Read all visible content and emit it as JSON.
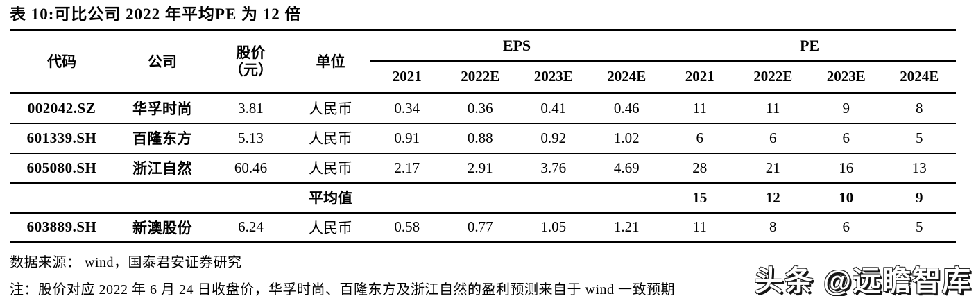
{
  "title": "表 10:可比公司 2022 年平均PE 为 12 倍",
  "table": {
    "headers": {
      "code": "代码",
      "company": "公司",
      "price_line1": "股价",
      "price_line2": "（元）",
      "unit": "单位"
    },
    "groups": {
      "eps": "EPS",
      "pe": "PE"
    },
    "eps_years": [
      "2021",
      "2022E",
      "2023E",
      "2024E"
    ],
    "pe_years": [
      "2021",
      "2022E",
      "2023E",
      "2024E"
    ],
    "rows": [
      {
        "code": "002042.SZ",
        "company": "华孚时尚",
        "price": "3.81",
        "unit": "人民币",
        "eps": [
          "0.34",
          "0.36",
          "0.41",
          "0.46"
        ],
        "pe": [
          "11",
          "11",
          "9",
          "8"
        ],
        "is_average": false
      },
      {
        "code": "601339.SH",
        "company": "百隆东方",
        "price": "5.13",
        "unit": "人民币",
        "eps": [
          "0.91",
          "0.88",
          "0.92",
          "1.02"
        ],
        "pe": [
          "6",
          "6",
          "6",
          "5"
        ],
        "is_average": false
      },
      {
        "code": "605080.SH",
        "company": "浙江自然",
        "price": "60.46",
        "unit": "人民币",
        "eps": [
          "2.17",
          "2.91",
          "3.76",
          "4.69"
        ],
        "pe": [
          "28",
          "21",
          "16",
          "13"
        ],
        "is_average": false
      },
      {
        "code": "",
        "company": "",
        "price": "",
        "unit": "平均值",
        "eps": [
          "",
          "",
          "",
          ""
        ],
        "pe": [
          "15",
          "12",
          "10",
          "9"
        ],
        "is_average": true
      },
      {
        "code": "603889.SH",
        "company": "新澳股份",
        "price": "6.24",
        "unit": "人民币",
        "eps": [
          "0.58",
          "0.77",
          "1.05",
          "1.21"
        ],
        "pe": [
          "11",
          "8",
          "6",
          "5"
        ],
        "is_average": false
      }
    ]
  },
  "footer": {
    "source": "数据来源： wind，国泰君安证券研究",
    "note": "注：股价对应 2022 年 6 月 24 日收盘价，华孚时尚、百隆东方及浙江自然的盈利预测来自于 wind 一致预期"
  },
  "watermark": "头条 @远瞻智库",
  "colors": {
    "text": "#000000",
    "background": "#ffffff",
    "rule": "#000000",
    "watermark_fill": "#ffffff",
    "watermark_shadow": "#161616"
  }
}
